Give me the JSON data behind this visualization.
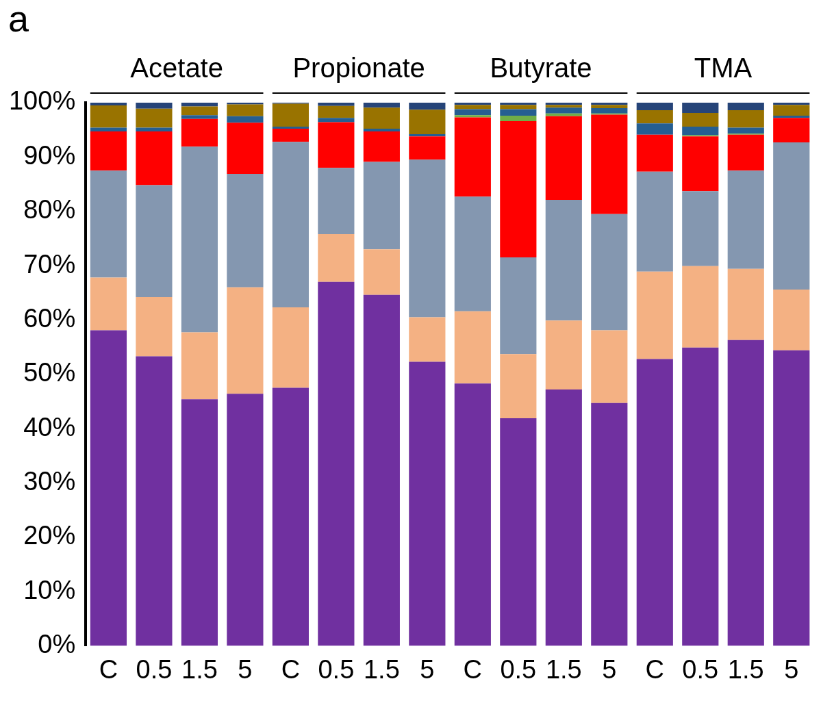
{
  "chart_data": {
    "type": "bar",
    "stacked": true,
    "grid": false,
    "legend": false,
    "annotations": [
      "a",
      "Acetate",
      "Propionate",
      "Butyrate",
      "TMA"
    ],
    "categories": [
      "C",
      "0.5",
      "1.5",
      "5",
      "C",
      "0.5",
      "1.5",
      "5",
      "C",
      "0.5",
      "1.5",
      "5",
      "C",
      "0.5",
      "1.5",
      "5"
    ],
    "ylim": [
      0,
      100
    ],
    "yticks": [
      {
        "value": 0,
        "label": "0%"
      },
      {
        "value": 10,
        "label": "10%"
      },
      {
        "value": 20,
        "label": "20%"
      },
      {
        "value": 30,
        "label": "30%"
      },
      {
        "value": 40,
        "label": "40%"
      },
      {
        "value": 50,
        "label": "50%"
      },
      {
        "value": 60,
        "label": "60%"
      },
      {
        "value": 70,
        "label": "70%"
      },
      {
        "value": 80,
        "label": "80%"
      },
      {
        "value": 90,
        "label": "90%"
      },
      {
        "value": 100,
        "label": "100%"
      }
    ],
    "series": [
      {
        "color": "#7030a0",
        "values": [
          58.1,
          53.3,
          45.4,
          46.4,
          47.5,
          67.0,
          64.6,
          52.3,
          48.3,
          41.9,
          47.2,
          44.7,
          52.8,
          54.9,
          56.3,
          54.4
        ]
      },
      {
        "color": "#f4b183",
        "values": [
          9.7,
          10.9,
          12.3,
          19.6,
          14.8,
          8.8,
          8.4,
          8.2,
          13.3,
          11.8,
          12.7,
          13.4,
          16.1,
          15.0,
          13.1,
          11.2
        ]
      },
      {
        "color": "#8497b0",
        "values": [
          19.7,
          20.6,
          34.2,
          20.9,
          30.5,
          12.2,
          16.1,
          29.0,
          21.1,
          17.8,
          22.2,
          21.4,
          18.4,
          13.8,
          18.1,
          27.1
        ]
      },
      {
        "color": "#ff0000",
        "values": [
          7.2,
          9.9,
          5.1,
          9.4,
          2.4,
          8.4,
          5.6,
          4.3,
          14.6,
          25.1,
          15.4,
          18.3,
          6.8,
          10.1,
          6.6,
          4.5
        ]
      },
      {
        "color": "#70ad47",
        "values": [
          0,
          0,
          0,
          0,
          0,
          0,
          0,
          0,
          0.4,
          1.0,
          0.5,
          0.2,
          0,
          0.2,
          0.2,
          0
        ]
      },
      {
        "color": "#255e91",
        "values": [
          0.7,
          0.7,
          0.7,
          1.2,
          0.4,
          0.8,
          0.5,
          0.4,
          1.1,
          1.2,
          1.1,
          1.0,
          2.1,
          1.6,
          1.1,
          0.4
        ]
      },
      {
        "color": "#997300",
        "values": [
          4.1,
          3.5,
          1.6,
          2.2,
          4.2,
          2.2,
          3.9,
          4.5,
          0.8,
          0.8,
          0.5,
          0.6,
          2.4,
          2.5,
          3.2,
          2.0
        ]
      },
      {
        "color": "#264478",
        "values": [
          0.5,
          1.1,
          0.7,
          0.3,
          0.2,
          0.6,
          0.9,
          1.3,
          0.4,
          0.4,
          0.4,
          0.4,
          1.4,
          1.9,
          1.4,
          0.4
        ]
      }
    ]
  }
}
